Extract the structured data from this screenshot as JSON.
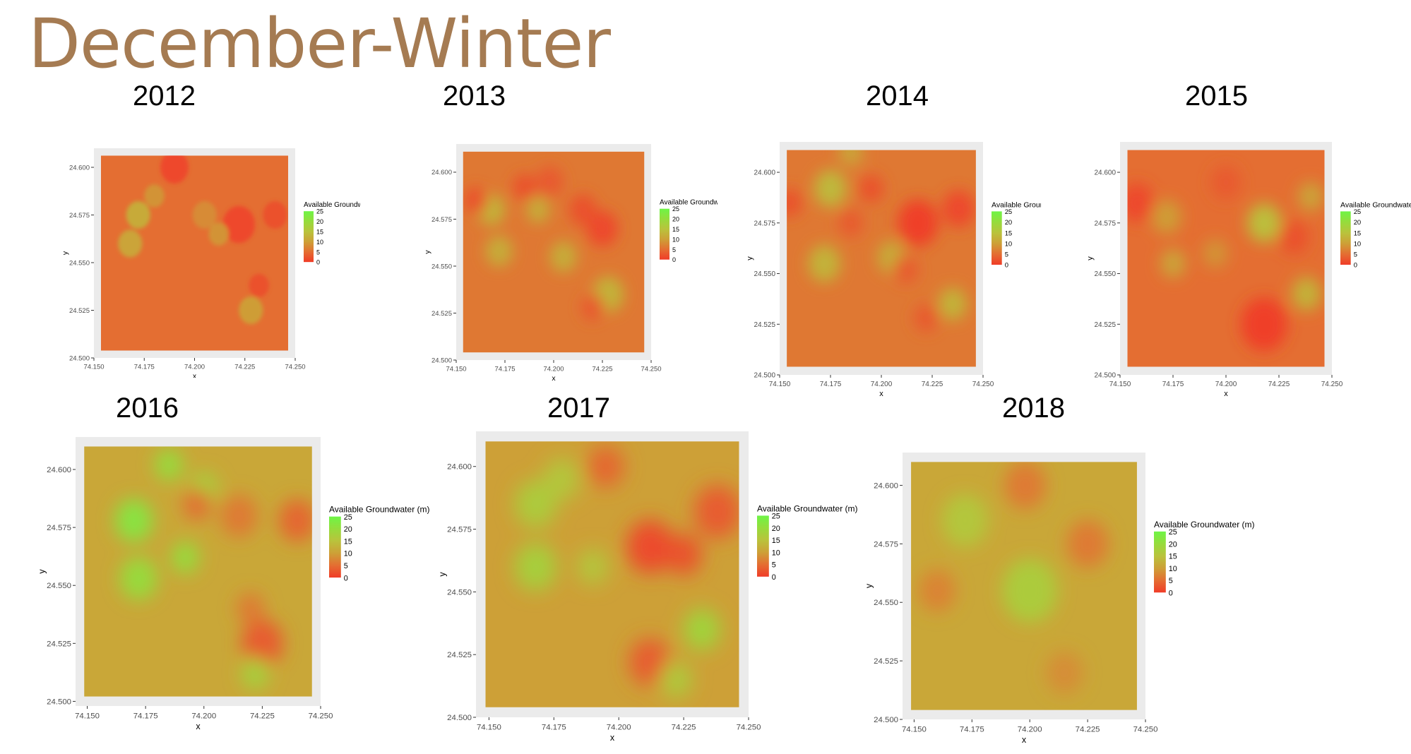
{
  "slide": {
    "title": "December-Winter"
  },
  "chart_data": [
    {
      "year": "2012",
      "type": "heatmap",
      "xlabel": "x",
      "ylabel": "y",
      "legend": {
        "title": "Available Groundwater (m)",
        "ticks": [
          "25",
          "20",
          "15",
          "10",
          "5",
          "0"
        ]
      },
      "xticks": [
        "74.150",
        "74.175",
        "74.200",
        "74.225",
        "74.250"
      ],
      "yticks": [
        "24.600",
        "24.575",
        "24.550",
        "24.525",
        "24.500"
      ],
      "xlim": [
        74.15,
        74.25
      ],
      "ylim": [
        24.5,
        24.61
      ],
      "base_value": 5,
      "smoothing": "pixelated",
      "hotspots": [
        {
          "x": 74.172,
          "y": 24.575,
          "v": 12,
          "r": 0.006
        },
        {
          "x": 74.168,
          "y": 24.56,
          "v": 11,
          "r": 0.006
        },
        {
          "x": 74.18,
          "y": 24.585,
          "v": 9,
          "r": 0.005
        },
        {
          "x": 74.19,
          "y": 24.6,
          "v": 1,
          "r": 0.007
        },
        {
          "x": 74.205,
          "y": 24.575,
          "v": 8,
          "r": 0.006
        },
        {
          "x": 74.222,
          "y": 24.57,
          "v": 1,
          "r": 0.008
        },
        {
          "x": 74.212,
          "y": 24.565,
          "v": 9,
          "r": 0.005
        },
        {
          "x": 74.228,
          "y": 24.525,
          "v": 10,
          "r": 0.006
        },
        {
          "x": 74.232,
          "y": 24.538,
          "v": 2,
          "r": 0.005
        },
        {
          "x": 74.24,
          "y": 24.575,
          "v": 2,
          "r": 0.006
        }
      ]
    },
    {
      "year": "2013",
      "type": "heatmap",
      "xlabel": "x",
      "ylabel": "y",
      "legend": {
        "title": "Available Groundwater (m)",
        "ticks": [
          "25",
          "20",
          "15",
          "10",
          "5",
          "0"
        ]
      },
      "xticks": [
        "74.150",
        "74.175",
        "74.200",
        "74.225",
        "74.250"
      ],
      "yticks": [
        "24.600",
        "24.575",
        "24.550",
        "24.525",
        "24.500"
      ],
      "xlim": [
        74.15,
        74.25
      ],
      "ylim": [
        24.5,
        24.615
      ],
      "base_value": 6,
      "hotspots": [
        {
          "x": 74.168,
          "y": 24.58,
          "v": 13,
          "r": 0.007
        },
        {
          "x": 74.172,
          "y": 24.558,
          "v": 12,
          "r": 0.007
        },
        {
          "x": 74.16,
          "y": 24.585,
          "v": 2,
          "r": 0.006
        },
        {
          "x": 74.185,
          "y": 24.592,
          "v": 2,
          "r": 0.006
        },
        {
          "x": 74.192,
          "y": 24.58,
          "v": 12,
          "r": 0.006
        },
        {
          "x": 74.205,
          "y": 24.555,
          "v": 12,
          "r": 0.007
        },
        {
          "x": 74.198,
          "y": 24.595,
          "v": 3,
          "r": 0.007
        },
        {
          "x": 74.225,
          "y": 24.57,
          "v": 1,
          "r": 0.008
        },
        {
          "x": 74.215,
          "y": 24.58,
          "v": 2,
          "r": 0.007
        },
        {
          "x": 74.228,
          "y": 24.535,
          "v": 13,
          "r": 0.008
        },
        {
          "x": 74.22,
          "y": 24.528,
          "v": 3,
          "r": 0.006
        }
      ]
    },
    {
      "year": "2014",
      "type": "heatmap",
      "xlabel": "x",
      "ylabel": "y",
      "legend": {
        "title": "Available Groundwater (m)",
        "ticks": [
          "25",
          "20",
          "15",
          "10",
          "5",
          "0"
        ]
      },
      "xticks": [
        "74.150",
        "74.175",
        "74.200",
        "74.225",
        "74.250"
      ],
      "yticks": [
        "24.600",
        "24.575",
        "24.550",
        "24.525",
        "24.500"
      ],
      "xlim": [
        74.15,
        74.25
      ],
      "ylim": [
        24.5,
        24.615
      ],
      "base_value": 6,
      "hotspots": [
        {
          "x": 74.175,
          "y": 24.592,
          "v": 14,
          "r": 0.008
        },
        {
          "x": 74.172,
          "y": 24.555,
          "v": 13,
          "r": 0.008
        },
        {
          "x": 74.185,
          "y": 24.61,
          "v": 11,
          "r": 0.006
        },
        {
          "x": 74.155,
          "y": 24.585,
          "v": 2,
          "r": 0.006
        },
        {
          "x": 74.185,
          "y": 24.575,
          "v": 3,
          "r": 0.006
        },
        {
          "x": 74.195,
          "y": 24.592,
          "v": 2,
          "r": 0.006
        },
        {
          "x": 74.205,
          "y": 24.558,
          "v": 12,
          "r": 0.007
        },
        {
          "x": 74.218,
          "y": 24.575,
          "v": 0,
          "r": 0.01
        },
        {
          "x": 74.238,
          "y": 24.582,
          "v": 1,
          "r": 0.008
        },
        {
          "x": 74.235,
          "y": 24.535,
          "v": 13,
          "r": 0.007
        },
        {
          "x": 74.222,
          "y": 24.528,
          "v": 3,
          "r": 0.006
        },
        {
          "x": 74.212,
          "y": 24.552,
          "v": 3,
          "r": 0.006
        }
      ]
    },
    {
      "year": "2015",
      "type": "heatmap",
      "xlabel": "x",
      "ylabel": "y",
      "legend": {
        "title": "Available Groundwater (m)",
        "ticks": [
          "25",
          "20",
          "15",
          "10",
          "5",
          "0"
        ]
      },
      "xticks": [
        "74.150",
        "74.175",
        "74.200",
        "74.225",
        "74.250"
      ],
      "yticks": [
        "24.600",
        "24.575",
        "24.550",
        "24.525",
        "24.500"
      ],
      "xlim": [
        74.15,
        74.25
      ],
      "ylim": [
        24.5,
        24.615
      ],
      "base_value": 5,
      "hotspots": [
        {
          "x": 74.158,
          "y": 24.585,
          "v": 1,
          "r": 0.008
        },
        {
          "x": 74.172,
          "y": 24.578,
          "v": 10,
          "r": 0.007
        },
        {
          "x": 74.175,
          "y": 24.555,
          "v": 11,
          "r": 0.006
        },
        {
          "x": 74.195,
          "y": 24.56,
          "v": 9,
          "r": 0.006
        },
        {
          "x": 74.218,
          "y": 24.575,
          "v": 15,
          "r": 0.008
        },
        {
          "x": 74.218,
          "y": 24.525,
          "v": 0,
          "r": 0.011
        },
        {
          "x": 74.232,
          "y": 24.568,
          "v": 2,
          "r": 0.007
        },
        {
          "x": 74.24,
          "y": 24.588,
          "v": 11,
          "r": 0.006
        },
        {
          "x": 74.238,
          "y": 24.54,
          "v": 13,
          "r": 0.007
        },
        {
          "x": 74.2,
          "y": 24.595,
          "v": 3,
          "r": 0.007
        }
      ]
    },
    {
      "year": "2016",
      "type": "heatmap",
      "xlabel": "x",
      "ylabel": "y",
      "legend": {
        "title": "Available Groundwater (m)",
        "ticks": [
          "25",
          "20",
          "15",
          "10",
          "5",
          "0"
        ]
      },
      "xticks": [
        "74.150",
        "74.175",
        "74.200",
        "74.225",
        "74.250"
      ],
      "yticks": [
        "24.600",
        "24.575",
        "24.550",
        "24.525",
        "24.500"
      ],
      "xlim": [
        74.145,
        74.25
      ],
      "ylim": [
        24.498,
        24.614
      ],
      "base_value": 11,
      "hotspots": [
        {
          "x": 74.17,
          "y": 24.578,
          "v": 22,
          "r": 0.008
        },
        {
          "x": 74.172,
          "y": 24.553,
          "v": 20,
          "r": 0.008
        },
        {
          "x": 74.185,
          "y": 24.602,
          "v": 20,
          "r": 0.006
        },
        {
          "x": 74.192,
          "y": 24.562,
          "v": 20,
          "r": 0.006
        },
        {
          "x": 74.2,
          "y": 24.592,
          "v": 18,
          "r": 0.006
        },
        {
          "x": 74.197,
          "y": 24.585,
          "v": 5,
          "r": 0.006
        },
        {
          "x": 74.215,
          "y": 24.58,
          "v": 6,
          "r": 0.008
        },
        {
          "x": 74.24,
          "y": 24.578,
          "v": 4,
          "r": 0.008
        },
        {
          "x": 74.225,
          "y": 24.525,
          "v": 3,
          "r": 0.009
        },
        {
          "x": 74.222,
          "y": 24.512,
          "v": 18,
          "r": 0.006
        },
        {
          "x": 74.22,
          "y": 24.54,
          "v": 6,
          "r": 0.006
        }
      ]
    },
    {
      "year": "2017",
      "type": "heatmap",
      "xlabel": "x",
      "ylabel": "y",
      "legend": {
        "title": "Available Groundwater (m)",
        "ticks": [
          "25",
          "20",
          "15",
          "10",
          "5",
          "0"
        ]
      },
      "xticks": [
        "74.150",
        "74.175",
        "74.200",
        "74.225",
        "74.250"
      ],
      "yticks": [
        "24.600",
        "24.575",
        "24.550",
        "24.525",
        "24.500"
      ],
      "xlim": [
        74.145,
        74.25
      ],
      "ylim": [
        24.5,
        24.614
      ],
      "base_value": 10,
      "hotspots": [
        {
          "x": 74.168,
          "y": 24.585,
          "v": 17,
          "r": 0.008
        },
        {
          "x": 74.168,
          "y": 24.56,
          "v": 18,
          "r": 0.008
        },
        {
          "x": 74.178,
          "y": 24.595,
          "v": 16,
          "r": 0.007
        },
        {
          "x": 74.19,
          "y": 24.56,
          "v": 16,
          "r": 0.006
        },
        {
          "x": 74.195,
          "y": 24.6,
          "v": 4,
          "r": 0.007
        },
        {
          "x": 74.212,
          "y": 24.568,
          "v": 1,
          "r": 0.009
        },
        {
          "x": 74.225,
          "y": 24.565,
          "v": 2,
          "r": 0.007
        },
        {
          "x": 74.238,
          "y": 24.582,
          "v": 3,
          "r": 0.009
        },
        {
          "x": 74.232,
          "y": 24.535,
          "v": 19,
          "r": 0.007
        },
        {
          "x": 74.212,
          "y": 24.522,
          "v": 3,
          "r": 0.008
        },
        {
          "x": 74.222,
          "y": 24.515,
          "v": 17,
          "r": 0.006
        }
      ]
    },
    {
      "year": "2018",
      "type": "heatmap",
      "xlabel": "x",
      "ylabel": "y",
      "legend": {
        "title": "Available Groundwater (m)",
        "ticks": [
          "25",
          "20",
          "15",
          "10",
          "5",
          "0"
        ]
      },
      "xticks": [
        "74.150",
        "74.175",
        "74.200",
        "74.225",
        "74.250"
      ],
      "yticks": [
        "24.600",
        "24.575",
        "24.550",
        "24.525",
        "24.500"
      ],
      "xlim": [
        74.145,
        74.25
      ],
      "ylim": [
        24.5,
        24.614
      ],
      "base_value": 11,
      "hotspots": [
        {
          "x": 74.172,
          "y": 24.585,
          "v": 16,
          "r": 0.01
        },
        {
          "x": 74.2,
          "y": 24.555,
          "v": 17,
          "r": 0.012
        },
        {
          "x": 74.198,
          "y": 24.6,
          "v": 6,
          "r": 0.009
        },
        {
          "x": 74.225,
          "y": 24.575,
          "v": 6,
          "r": 0.009
        },
        {
          "x": 74.16,
          "y": 24.555,
          "v": 7,
          "r": 0.008
        },
        {
          "x": 74.215,
          "y": 24.52,
          "v": 8,
          "r": 0.008
        }
      ]
    }
  ]
}
